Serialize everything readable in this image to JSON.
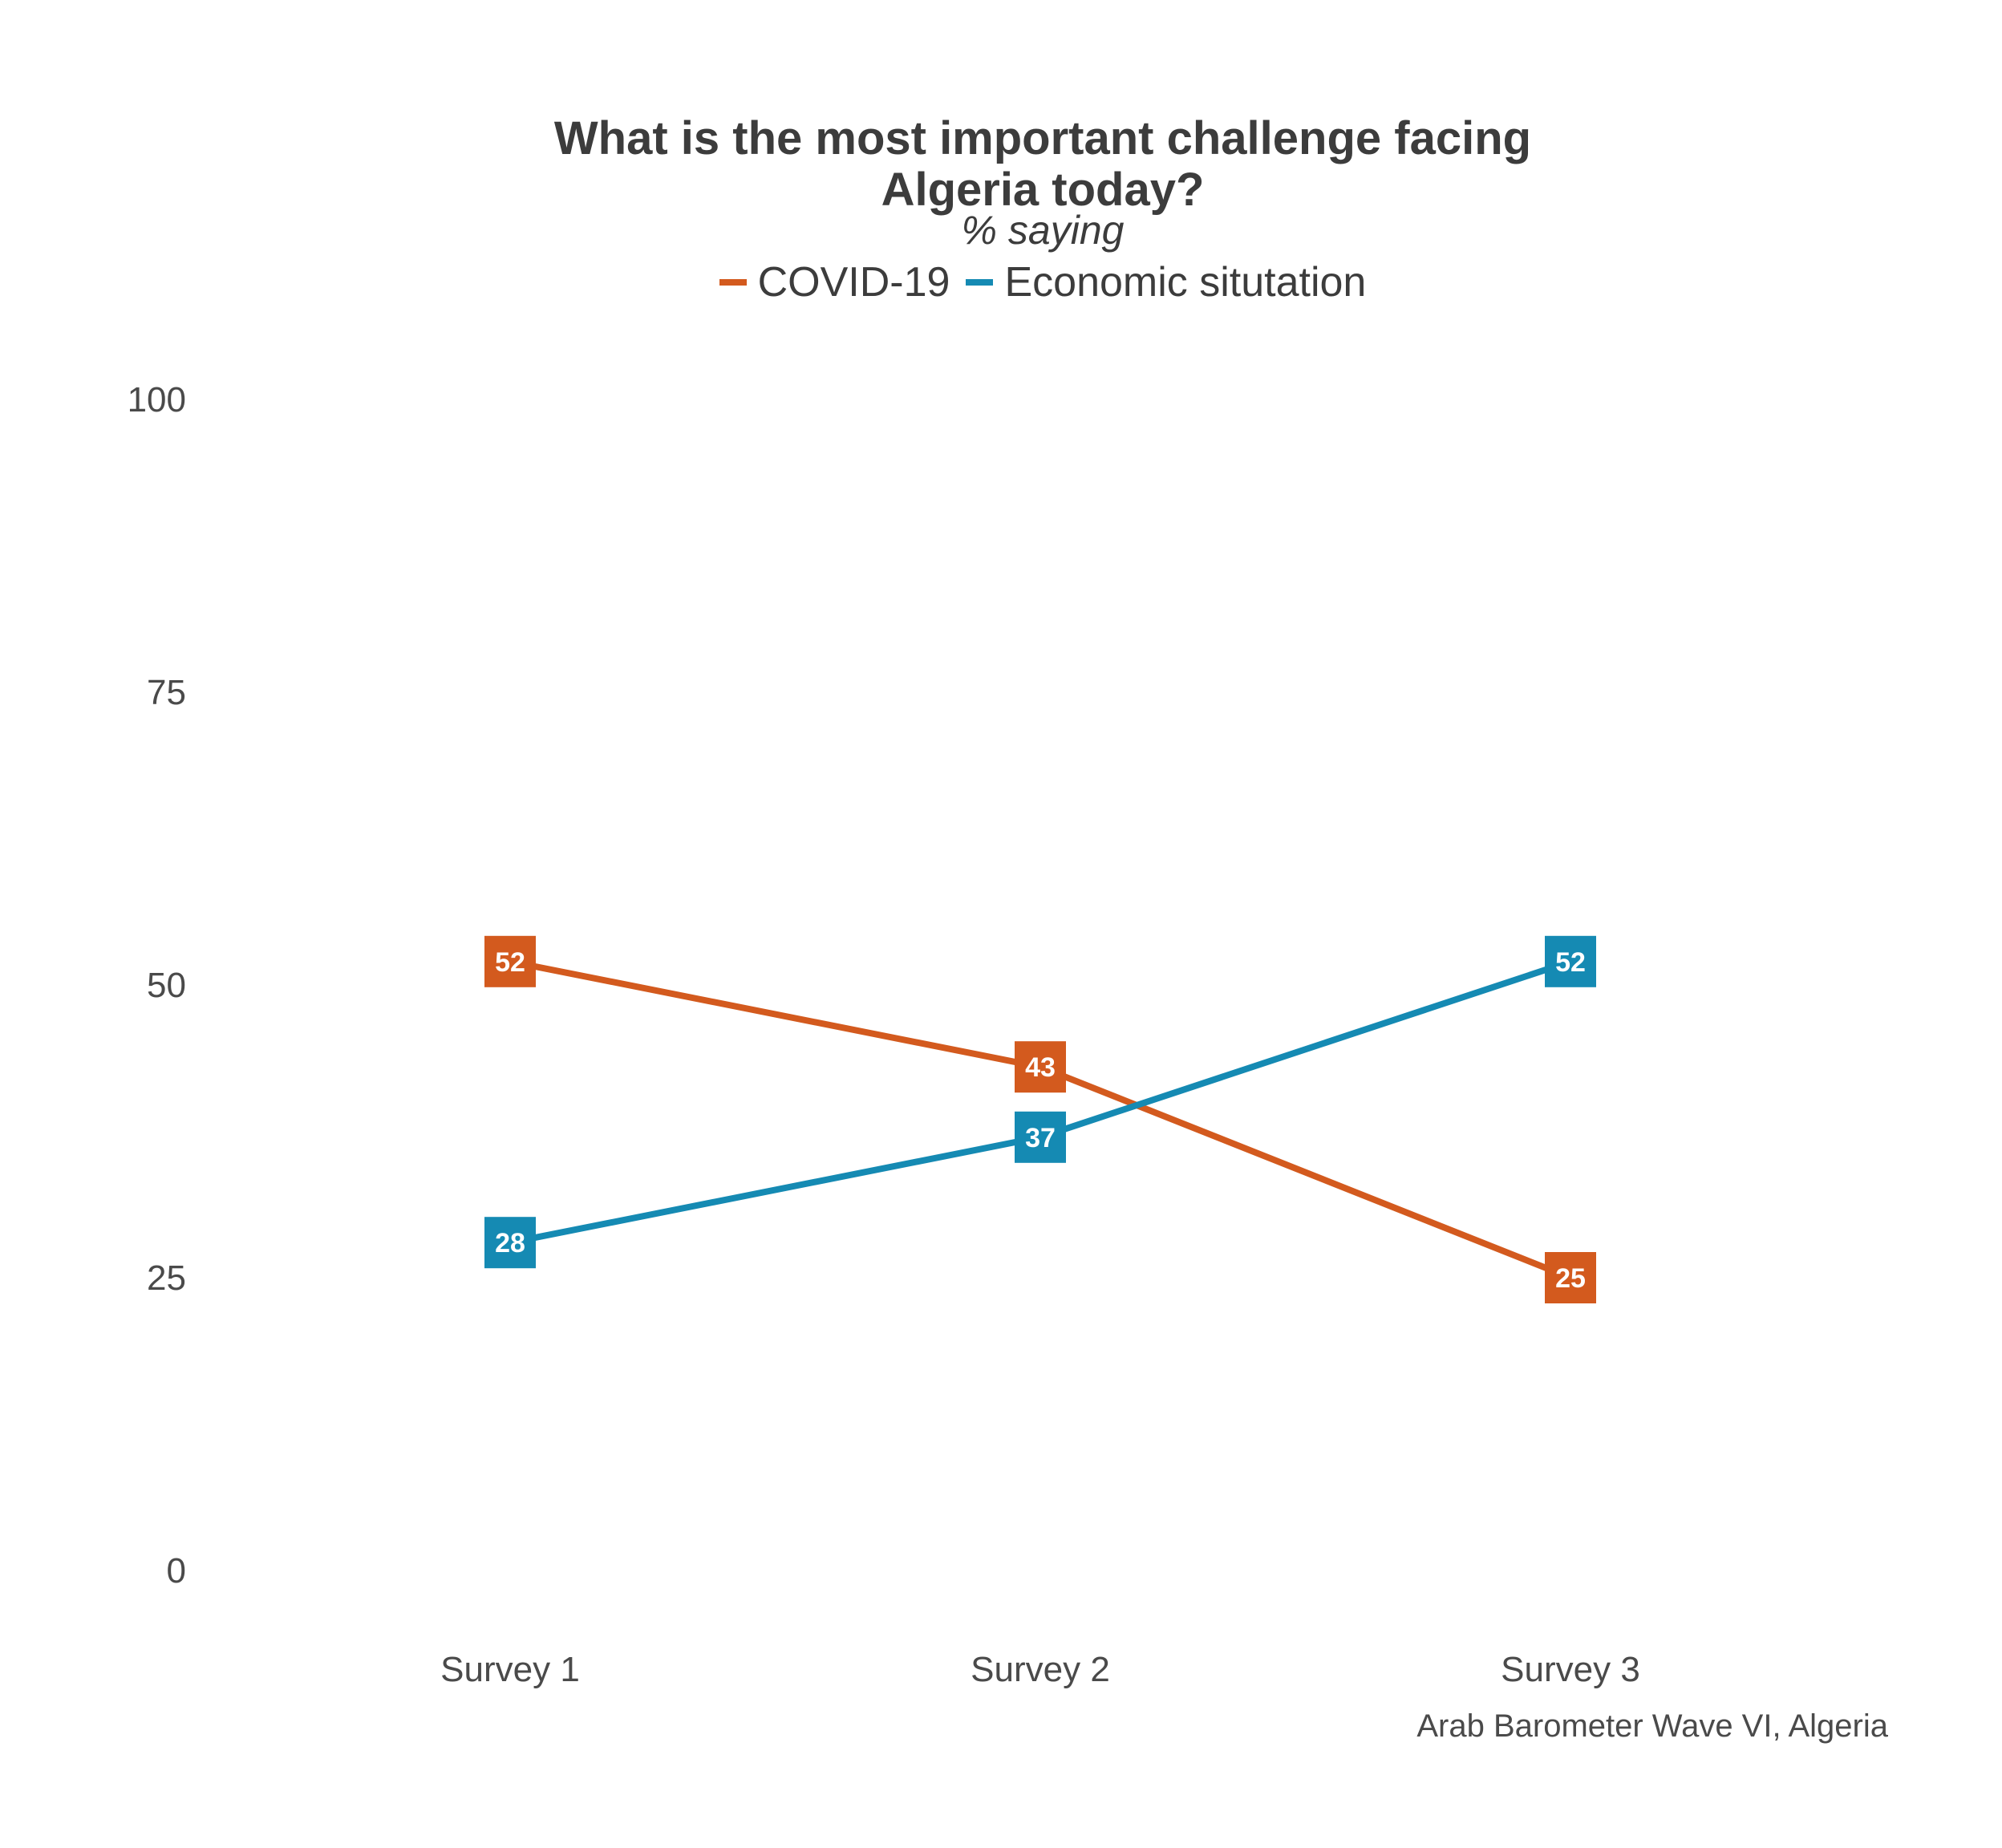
{
  "chart_data": {
    "type": "line",
    "title_lines": [
      "What is the most important challenge facing",
      "Algeria today?"
    ],
    "subtitle": "% saying",
    "categories": [
      "Survey 1",
      "Survey 2",
      "Survey 3"
    ],
    "yticks": [
      0,
      25,
      50,
      75,
      100
    ],
    "ylim": [
      0,
      100
    ],
    "grid": false,
    "legend_position": "top",
    "series": [
      {
        "name": "COVID-19",
        "color": "#d35a1e",
        "values": [
          52,
          43,
          25
        ]
      },
      {
        "name": "Economic situtation",
        "color": "#158ab3",
        "values": [
          28,
          37,
          52
        ]
      }
    ],
    "caption": "Arab Barometer Wave VI, Algeria"
  }
}
